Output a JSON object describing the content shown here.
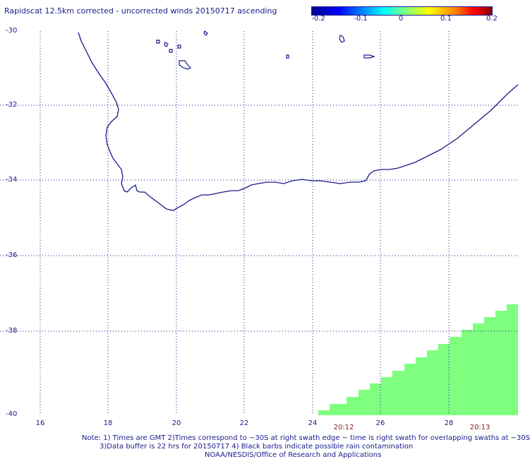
{
  "title": "Rapidscat 12.5km corrected - uncorrected winds 20150717 ascending",
  "colorbar": {
    "ticks": [
      "-0.2",
      "-0.1",
      "0",
      "0.1",
      "0.2"
    ],
    "colors": [
      "#00008b",
      "#0000ff",
      "#00ffff",
      "#7fff7f",
      "#ffff00",
      "#ff7f00",
      "#ff0000",
      "#8b0000"
    ]
  },
  "map": {
    "lat_labels": [
      "-30",
      "-32",
      "-34",
      "-36",
      "-38",
      "-40"
    ],
    "lon_labels": [
      "16",
      "18",
      "20",
      "22",
      "24",
      "26",
      "28"
    ],
    "lat_range": [
      -40,
      -30
    ],
    "lon_range": [
      15,
      29.8
    ],
    "grid": true,
    "coast_color": "#1a1a8c",
    "swath_color": "#7fff7f"
  },
  "swath_times": [
    "20:12",
    "20:13"
  ],
  "notes": {
    "line1": "Note: 1) Times are GMT 2)Times correspond to ~30S at right swath edge ~ time is right swath for overlapping swaths at ~30S",
    "line2": "3)Data buffer is 22 hrs for 20150717 4) Black barbs indicate possible rain contamination",
    "line3": "NOAA/NESDIS/Office of Research and Applications"
  }
}
